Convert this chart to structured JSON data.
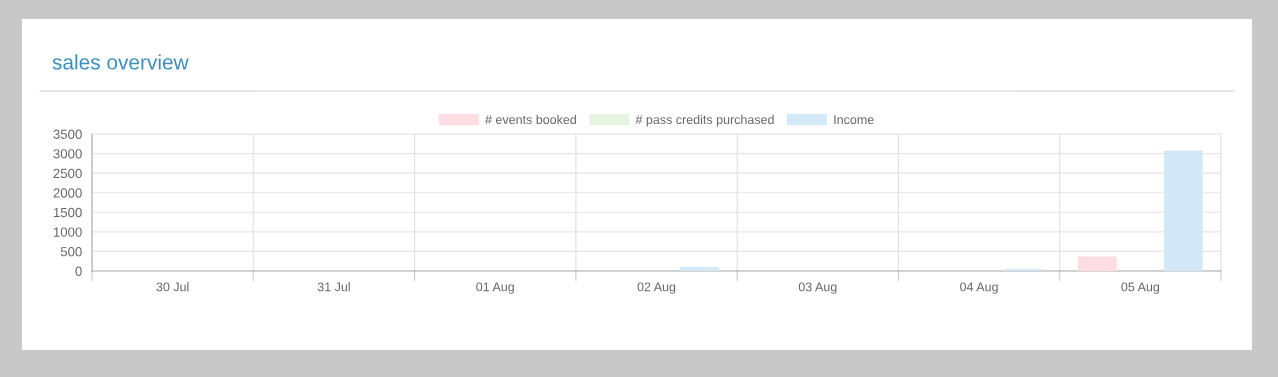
{
  "chart_data": {
    "type": "bar",
    "title": "sales overview",
    "categories": [
      "30 Jul",
      "31 Jul",
      "01 Aug",
      "02 Aug",
      "03 Aug",
      "04 Aug",
      "05 Aug"
    ],
    "series": [
      {
        "name": "# events booked",
        "color": "#fddde3",
        "values": [
          0,
          0,
          0,
          0,
          0,
          0,
          370
        ]
      },
      {
        "name": "# pass credits purchased",
        "color": "#e5f4df",
        "values": [
          0,
          0,
          0,
          0,
          0,
          0,
          0
        ]
      },
      {
        "name": "Income",
        "color": "#d4e9f8",
        "values": [
          0,
          0,
          0,
          100,
          0,
          50,
          3080
        ]
      }
    ],
    "ylim": [
      0,
      3500
    ],
    "yticks": [
      0,
      500,
      1000,
      1500,
      2000,
      2500,
      3000,
      3500
    ],
    "grid": true,
    "legend": "top"
  }
}
